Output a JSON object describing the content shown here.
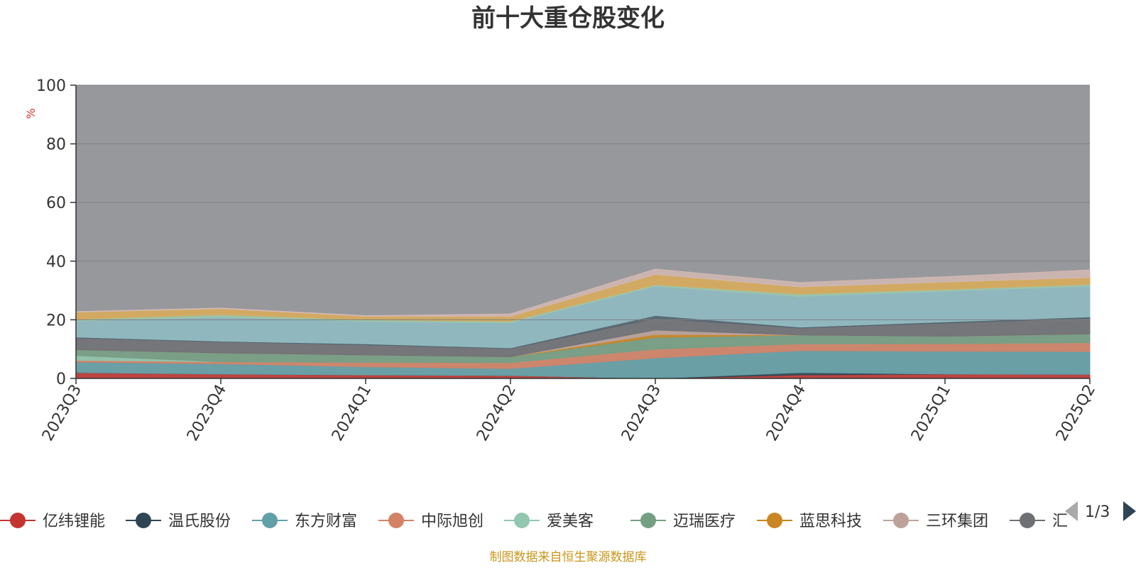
{
  "title": "前十大重仓股变化",
  "source_note": "制图数据来自恒生聚源数据库",
  "legend_pager": "1/3",
  "colors": {
    "background_area": "#97989c",
    "gridline": "#7d7f84",
    "axis": "#333333"
  },
  "chart_data": {
    "type": "area",
    "stacked": true,
    "title": "前十大重仓股变化",
    "ylabel": "%",
    "ylim": [
      0,
      100
    ],
    "yticks": [
      0,
      20,
      40,
      60,
      80,
      100
    ],
    "categories": [
      "2023Q3",
      "2023Q4",
      "2024Q1",
      "2024Q2",
      "2024Q3",
      "2024Q4",
      "2025Q1",
      "2025Q2"
    ],
    "legend_position": "bottom",
    "series": [
      {
        "name": "亿纬锂能",
        "color": "#c23531",
        "values": [
          2.0,
          1.5,
          1.2,
          1.0,
          0.0,
          1.2,
          1.5,
          1.4
        ]
      },
      {
        "name": "温氏股份",
        "color": "#2f4554",
        "values": [
          0.0,
          0.0,
          0.0,
          0.0,
          0.0,
          0.8,
          0.0,
          0.0
        ]
      },
      {
        "name": "东方财富",
        "color": "#61a0a8",
        "values": [
          3.6,
          3.5,
          2.8,
          2.4,
          7.0,
          7.5,
          7.8,
          7.8
        ]
      },
      {
        "name": "中际旭创",
        "color": "#d48265",
        "values": [
          0.6,
          0.7,
          1.5,
          2.0,
          3.0,
          2.3,
          2.6,
          3.0
        ]
      },
      {
        "name": "爱美客",
        "color": "#91c7ae",
        "values": [
          1.6,
          0.0,
          0.0,
          0.0,
          0.0,
          0.0,
          0.0,
          0.0
        ]
      },
      {
        "name": "迈瑞医疗",
        "color": "#749f83",
        "values": [
          2.0,
          3.0,
          2.5,
          2.0,
          4.0,
          3.0,
          2.5,
          3.0
        ]
      },
      {
        "name": "蓝思科技",
        "color": "#ca8622",
        "values": [
          0.0,
          0.0,
          0.0,
          0.0,
          1.0,
          0.0,
          0.0,
          0.0
        ]
      },
      {
        "name": "三环集团",
        "color": "#bda29a",
        "values": [
          0.0,
          0.0,
          0.0,
          0.0,
          1.5,
          0.0,
          0.0,
          0.0
        ]
      },
      {
        "name": "汇川技术",
        "color": "#6e7074",
        "values": [
          4.0,
          3.8,
          3.5,
          2.8,
          4.0,
          2.4,
          4.5,
          5.3
        ]
      },
      {
        "name": "",
        "color": "#546570",
        "values": [
          0.3,
          0.2,
          0.3,
          0.2,
          1.0,
          0.3,
          0.4,
          0.5
        ]
      },
      {
        "name": "",
        "color": "#8fbcc4",
        "values": [
          5.5,
          8.3,
          7.7,
          8.6,
          10.0,
          10.5,
          10.5,
          10.5
        ]
      },
      {
        "name": "",
        "color": "#9fc7a8",
        "values": [
          0.6,
          0.8,
          0.5,
          0.5,
          0.5,
          0.8,
          0.6,
          0.6
        ]
      },
      {
        "name": "",
        "color": "#dbab58",
        "values": [
          2.4,
          2.0,
          1.2,
          1.7,
          3.5,
          2.4,
          2.5,
          2.3
        ]
      },
      {
        "name": "",
        "color": "#d2b8b3",
        "values": [
          0.2,
          0.2,
          0.2,
          0.8,
          1.8,
          1.5,
          1.8,
          2.6
        ]
      }
    ]
  }
}
